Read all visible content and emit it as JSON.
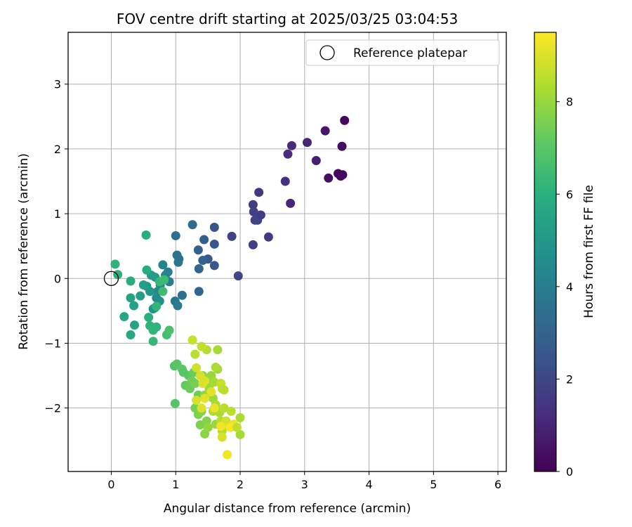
{
  "chart_data": {
    "type": "scatter",
    "title": "FOV centre drift starting at 2025/03/25 03:04:53",
    "xlabel": "Angular distance from reference (arcmin)",
    "ylabel": "Rotation from reference (arcmin)",
    "xlim": [
      -0.67,
      6.13
    ],
    "ylim": [
      -2.98,
      3.8
    ],
    "xticks": [
      0,
      1,
      2,
      3,
      4,
      5,
      6
    ],
    "yticks": [
      -2,
      -1,
      0,
      1,
      2,
      3
    ],
    "yticklabels": [
      "−2",
      "−1",
      "0",
      "1",
      "2",
      "3"
    ],
    "grid": true,
    "legend": {
      "placement": "top-right",
      "entries": [
        "Reference platepar"
      ]
    },
    "reference_point": {
      "x": 0,
      "y": 0
    },
    "colorbar": {
      "label": "Hours from first FF file",
      "range": [
        0,
        9.5
      ],
      "ticks": [
        0,
        2,
        4,
        6,
        8
      ],
      "colormap": "viridis"
    },
    "points": [
      [
        3.62,
        2.44,
        0.2
      ],
      [
        3.58,
        2.04,
        0.3
      ],
      [
        3.55,
        1.6,
        0.1
      ],
      [
        3.52,
        1.62,
        0.2
      ],
      [
        3.59,
        1.6,
        0.15
      ],
      [
        3.56,
        1.58,
        0.3
      ],
      [
        3.37,
        1.55,
        0.4
      ],
      [
        3.32,
        2.28,
        0.6
      ],
      [
        3.18,
        1.82,
        0.8
      ],
      [
        3.04,
        2.1,
        1.0
      ],
      [
        2.8,
        2.05,
        1.1
      ],
      [
        2.74,
        1.92,
        1.2
      ],
      [
        2.7,
        1.5,
        1.3
      ],
      [
        2.78,
        1.16,
        1.0
      ],
      [
        2.29,
        1.33,
        1.5
      ],
      [
        2.2,
        1.14,
        1.7
      ],
      [
        2.21,
        1.03,
        1.8
      ],
      [
        2.27,
        0.9,
        2.0
      ],
      [
        2.23,
        0.9,
        1.9
      ],
      [
        2.32,
        0.98,
        1.7
      ],
      [
        2.44,
        0.64,
        1.6
      ],
      [
        2.2,
        0.52,
        1.8
      ],
      [
        1.87,
        0.65,
        1.9
      ],
      [
        1.97,
        0.04,
        2.0
      ],
      [
        1.6,
        0.79,
        2.4
      ],
      [
        1.6,
        0.53,
        2.5
      ],
      [
        1.6,
        0.2,
        2.6
      ],
      [
        1.5,
        0.3,
        2.6
      ],
      [
        1.44,
        0.6,
        2.8
      ],
      [
        1.42,
        0.28,
        3.0
      ],
      [
        1.35,
        0.44,
        3.0
      ],
      [
        1.36,
        0.15,
        3.1
      ],
      [
        1.26,
        0.83,
        3.3
      ],
      [
        1.36,
        -0.2,
        3.1
      ],
      [
        1.1,
        -0.26,
        3.4
      ],
      [
        1.0,
        0.66,
        3.5
      ],
      [
        1.02,
        0.36,
        3.6
      ],
      [
        1.05,
        0.3,
        3.6
      ],
      [
        1.04,
        0.25,
        3.7
      ],
      [
        0.99,
        -0.35,
        3.8
      ],
      [
        1.03,
        -0.42,
        3.9
      ],
      [
        0.9,
        -0.05,
        4.0
      ],
      [
        0.88,
        0.1,
        4.1
      ],
      [
        0.84,
        0.05,
        4.2
      ],
      [
        0.8,
        0.21,
        4.3
      ],
      [
        0.76,
        -0.1,
        4.4
      ],
      [
        0.72,
        -0.2,
        4.5
      ],
      [
        0.7,
        -0.3,
        4.6
      ],
      [
        0.68,
        -0.45,
        4.8
      ],
      [
        0.75,
        -0.35,
        4.7
      ],
      [
        0.65,
        -0.47,
        4.9
      ],
      [
        0.6,
        -0.2,
        5.0
      ],
      [
        0.55,
        -0.12,
        5.1
      ],
      [
        0.62,
        0.05,
        5.2
      ],
      [
        0.68,
        0.02,
        5.2
      ],
      [
        0.5,
        -0.1,
        5.3
      ],
      [
        0.45,
        -0.27,
        5.3
      ],
      [
        0.35,
        -0.42,
        5.4
      ],
      [
        0.3,
        -0.3,
        5.5
      ],
      [
        0.36,
        -0.72,
        5.5
      ],
      [
        0.2,
        -0.59,
        5.6
      ],
      [
        0.3,
        -0.87,
        5.7
      ],
      [
        0.3,
        -0.04,
        5.8
      ],
      [
        0.55,
        0.13,
        5.8
      ],
      [
        0.54,
        0.67,
        5.9
      ],
      [
        0.1,
        0.06,
        6.0
      ],
      [
        0.06,
        0.22,
        6.1
      ],
      [
        0.58,
        -0.6,
        6.0
      ],
      [
        0.6,
        -0.73,
        6.1
      ],
      [
        0.65,
        -0.8,
        6.2
      ],
      [
        0.7,
        -0.75,
        6.1
      ],
      [
        0.65,
        -0.97,
        6.3
      ],
      [
        0.7,
        -0.43,
        6.2
      ],
      [
        0.75,
        -0.05,
        6.3
      ],
      [
        0.82,
        -0.02,
        6.4
      ],
      [
        0.8,
        -0.2,
        6.5
      ],
      [
        0.86,
        -0.87,
        6.6
      ],
      [
        0.9,
        -0.8,
        6.7
      ],
      [
        0.98,
        -1.35,
        6.8
      ],
      [
        0.99,
        -1.93,
        6.9
      ],
      [
        1.02,
        -1.32,
        7.0
      ],
      [
        1.1,
        -1.4,
        7.1
      ],
      [
        1.15,
        -1.65,
        7.2
      ],
      [
        1.2,
        -1.5,
        7.1
      ],
      [
        1.12,
        -1.45,
        7.0
      ],
      [
        1.22,
        -1.7,
        7.3
      ],
      [
        1.25,
        -1.58,
        7.4
      ],
      [
        1.28,
        -1.45,
        7.3
      ],
      [
        1.3,
        -1.62,
        7.5
      ],
      [
        1.35,
        -1.8,
        7.4
      ],
      [
        1.3,
        -2.0,
        7.5
      ],
      [
        1.35,
        -2.1,
        7.6
      ],
      [
        1.4,
        -2.05,
        7.7
      ],
      [
        1.38,
        -2.26,
        7.6
      ],
      [
        1.45,
        -2.4,
        7.8
      ],
      [
        1.48,
        -2.2,
        7.7
      ],
      [
        1.5,
        -2.3,
        7.9
      ],
      [
        1.42,
        -1.5,
        7.8
      ],
      [
        1.45,
        -1.8,
        7.9
      ],
      [
        1.5,
        -1.6,
        8.0
      ],
      [
        1.55,
        -1.5,
        8.0
      ],
      [
        1.52,
        -1.7,
        8.1
      ],
      [
        1.58,
        -1.85,
        8.1
      ],
      [
        1.6,
        -1.6,
        8.2
      ],
      [
        1.62,
        -1.95,
        8.2
      ],
      [
        1.58,
        -2.05,
        8.3
      ],
      [
        1.62,
        -2.25,
        8.0
      ],
      [
        1.68,
        -2.07,
        8.3
      ],
      [
        1.7,
        -2.2,
        8.4
      ],
      [
        1.72,
        -2.35,
        8.4
      ],
      [
        1.75,
        -2.0,
        8.5
      ],
      [
        1.65,
        -1.4,
        8.1
      ],
      [
        1.65,
        -1.1,
        8.2
      ],
      [
        1.62,
        -1.37,
        8.3
      ],
      [
        1.48,
        -1.1,
        8.4
      ],
      [
        1.4,
        -1.05,
        8.6
      ],
      [
        1.26,
        -0.95,
        8.7
      ],
      [
        1.3,
        -1.17,
        8.5
      ],
      [
        1.32,
        -1.38,
        8.8
      ],
      [
        1.38,
        -1.5,
        8.9
      ],
      [
        1.42,
        -1.62,
        9.0
      ],
      [
        1.45,
        -1.85,
        9.1
      ],
      [
        1.32,
        -1.88,
        8.9
      ],
      [
        1.4,
        -2.0,
        9.0
      ],
      [
        1.7,
        -1.62,
        8.7
      ],
      [
        1.72,
        -1.7,
        8.6
      ],
      [
        1.75,
        -1.72,
        8.5
      ],
      [
        1.78,
        -2.2,
        8.8
      ],
      [
        1.82,
        -2.28,
        9.0
      ],
      [
        1.86,
        -2.05,
        8.5
      ],
      [
        1.9,
        -2.25,
        9.2
      ],
      [
        2.0,
        -2.15,
        8.3
      ],
      [
        2.0,
        -2.41,
        8.2
      ],
      [
        1.72,
        -2.45,
        8.9
      ],
      [
        1.8,
        -2.72,
        9.3
      ],
      [
        1.85,
        -2.3,
        9.4
      ],
      [
        1.7,
        -2.28,
        9.3
      ],
      [
        1.6,
        -2.0,
        9.2
      ],
      [
        1.55,
        -1.75,
        9.1
      ],
      [
        1.45,
        -1.58,
        9.0
      ],
      [
        1.95,
        -2.3,
        8.6
      ]
    ]
  }
}
